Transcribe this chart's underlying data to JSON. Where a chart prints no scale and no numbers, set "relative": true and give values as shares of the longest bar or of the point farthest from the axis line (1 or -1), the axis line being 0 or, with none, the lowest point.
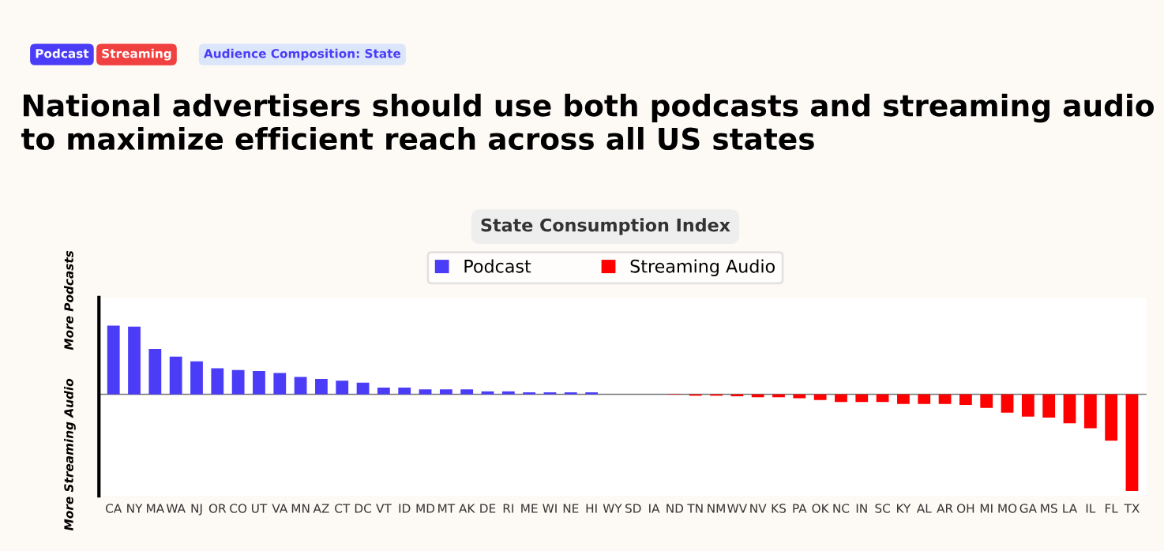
{
  "chart_data": {
    "type": "bar",
    "title": "National advertisers should use both podcasts and streaming audio to maximize efficient reach across all US states",
    "subtitle": "State Consumption Index",
    "annotations": [
      "Podcast",
      "Streaming",
      "Audience Composition: State",
      "More Podcasts",
      "More Streaming Audio"
    ],
    "relative": true,
    "legend": "top",
    "categories": [
      "CA",
      "NY",
      "MA",
      "WA",
      "NJ",
      "OR",
      "CO",
      "UT",
      "VA",
      "MN",
      "AZ",
      "CT",
      "DC",
      "VT",
      "ID",
      "MD",
      "MT",
      "AK",
      "DE",
      "RI",
      "ME",
      "WI",
      "NE",
      "HI",
      "WY",
      "SD",
      "IA",
      "ND",
      "TN",
      "NM",
      "WV",
      "NV",
      "KS",
      "PA",
      "OK",
      "NC",
      "IN",
      "SC",
      "KY",
      "AL",
      "AR",
      "OH",
      "MI",
      "MO",
      "GA",
      "MS",
      "LA",
      "IL",
      "FL",
      "TX"
    ],
    "series": [
      {
        "name": "Podcast",
        "color": "#4a3cf7",
        "values": [
          0.71,
          0.7,
          0.47,
          0.39,
          0.34,
          0.27,
          0.25,
          0.24,
          0.22,
          0.18,
          0.16,
          0.14,
          0.12,
          0.07,
          0.07,
          0.05,
          0.05,
          0.05,
          0.03,
          0.03,
          0.02,
          0.02,
          0.02,
          0.02,
          null,
          null,
          null,
          null,
          null,
          null,
          null,
          null,
          null,
          null,
          null,
          null,
          null,
          null,
          null,
          null,
          null,
          null,
          null,
          null,
          null,
          null,
          null,
          null,
          null,
          null
        ]
      },
      {
        "name": "Streaming Audio",
        "color": "#ff0000",
        "values": [
          null,
          null,
          null,
          null,
          null,
          null,
          null,
          null,
          null,
          null,
          null,
          null,
          null,
          null,
          null,
          null,
          null,
          null,
          null,
          null,
          null,
          null,
          null,
          null,
          0,
          0,
          0,
          -0.005,
          -0.015,
          -0.015,
          -0.02,
          -0.03,
          -0.03,
          -0.04,
          -0.06,
          -0.08,
          -0.08,
          -0.08,
          -0.1,
          -0.1,
          -0.1,
          -0.11,
          -0.14,
          -0.19,
          -0.23,
          -0.24,
          -0.3,
          -0.35,
          -0.48,
          -1
        ]
      }
    ]
  }
}
